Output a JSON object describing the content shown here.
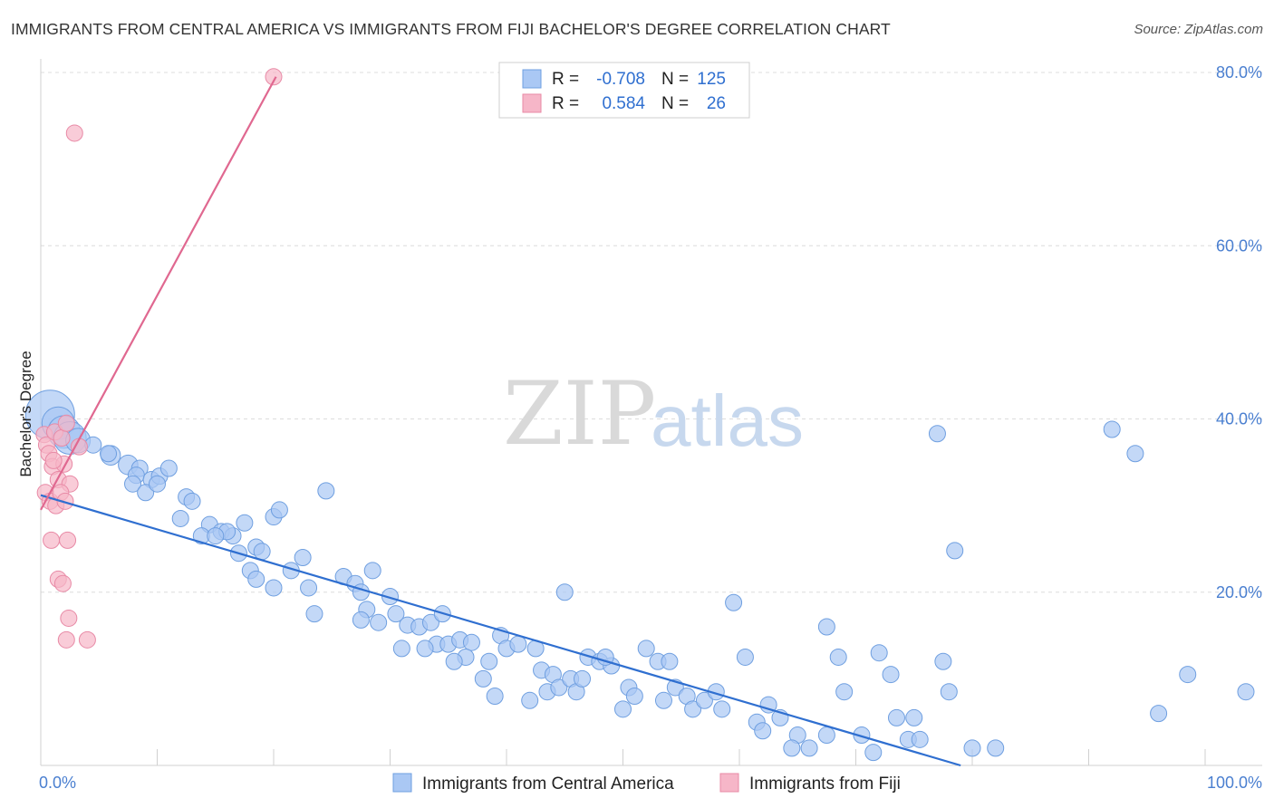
{
  "header": {
    "title": "IMMIGRANTS FROM CENTRAL AMERICA VS IMMIGRANTS FROM FIJI BACHELOR'S DEGREE CORRELATION CHART",
    "source": "Source: ZipAtlas.com"
  },
  "watermark": {
    "zip": "ZIP",
    "atlas": "atlas"
  },
  "legend": {
    "r_label": "R =",
    "n_label": "N =",
    "rows": [
      {
        "r": "-0.708",
        "n": "125",
        "color": "#aac8f4"
      },
      {
        "r": "0.584",
        "n": "26",
        "color": "#f6b6c8"
      }
    ]
  },
  "colors": {
    "blue_fill": "#aac8f4",
    "blue_stroke": "#6f9fe0",
    "blue_line": "#2f6fd0",
    "pink_fill": "#f6b6c8",
    "pink_stroke": "#e88aa6",
    "pink_line": "#e06890"
  },
  "chart_data": {
    "type": "scatter",
    "ylabel": "Bachelor's Degree",
    "xlim": [
      0,
      100
    ],
    "ylim": [
      0,
      80
    ],
    "x_tick_labels": [
      "0.0%",
      "100.0%"
    ],
    "y_tick_labels": [
      "20.0%",
      "40.0%",
      "60.0%",
      "80.0%"
    ],
    "y_ticks": [
      20,
      40,
      60,
      80
    ],
    "grid": true,
    "legend_position": "top-center",
    "series": [
      {
        "name": "Immigrants from Central America",
        "trend": [
          [
            0,
            31.2
          ],
          [
            79,
            0
          ]
        ],
        "points": [
          [
            0.8,
            40.5,
            3
          ],
          [
            1.5,
            39.5,
            2
          ],
          [
            2.0,
            38.5,
            2
          ],
          [
            2.5,
            37.8,
            2
          ],
          [
            3.2,
            37.5,
            1.5
          ],
          [
            4.5,
            37.0,
            1
          ],
          [
            6.0,
            35.8,
            1.2
          ],
          [
            5.8,
            36.0,
            1
          ],
          [
            7.5,
            34.7,
            1.2
          ],
          [
            8.5,
            34.3,
            1
          ],
          [
            8.2,
            33.5,
            1
          ],
          [
            7.9,
            32.5,
            1
          ],
          [
            9.5,
            33.0,
            1
          ],
          [
            10.2,
            33.4,
            1
          ],
          [
            11.0,
            34.3,
            1
          ],
          [
            9.0,
            31.5,
            1
          ],
          [
            10.0,
            32.5,
            1
          ],
          [
            12.5,
            31.0,
            1
          ],
          [
            13.0,
            30.5,
            1
          ],
          [
            14.5,
            27.8,
            1
          ],
          [
            15.5,
            27.0,
            1
          ],
          [
            16.5,
            26.5,
            1
          ],
          [
            12.0,
            28.5,
            1
          ],
          [
            13.8,
            26.5,
            1
          ],
          [
            16.0,
            27.0,
            1
          ],
          [
            17.5,
            28.0,
            1
          ],
          [
            20.0,
            28.7,
            1
          ],
          [
            20.5,
            29.5,
            1
          ],
          [
            17.0,
            24.5,
            1
          ],
          [
            18.5,
            25.2,
            1
          ],
          [
            19.0,
            24.7,
            1
          ],
          [
            18.0,
            22.5,
            1
          ],
          [
            18.5,
            21.5,
            1
          ],
          [
            20.0,
            20.5,
            1
          ],
          [
            21.5,
            22.5,
            1
          ],
          [
            22.5,
            24.0,
            1
          ],
          [
            23.0,
            20.5,
            1
          ],
          [
            24.5,
            31.7,
            1
          ],
          [
            23.5,
            17.5,
            1
          ],
          [
            26.0,
            21.8,
            1
          ],
          [
            27.0,
            21.0,
            1
          ],
          [
            27.5,
            20.0,
            1
          ],
          [
            28.5,
            22.5,
            1
          ],
          [
            28.0,
            18.0,
            1
          ],
          [
            29.0,
            16.5,
            1
          ],
          [
            30.0,
            19.5,
            1
          ],
          [
            30.5,
            17.5,
            1
          ],
          [
            31.5,
            16.2,
            1
          ],
          [
            32.5,
            16.0,
            1
          ],
          [
            33.5,
            16.5,
            1
          ],
          [
            34.5,
            17.5,
            1
          ],
          [
            31.0,
            13.5,
            1
          ],
          [
            34.0,
            14.0,
            1
          ],
          [
            35.0,
            14.0,
            1
          ],
          [
            36.0,
            14.5,
            1
          ],
          [
            37.0,
            14.2,
            1
          ],
          [
            36.5,
            12.5,
            1
          ],
          [
            38.5,
            12.0,
            1
          ],
          [
            38.0,
            10.0,
            1
          ],
          [
            39.0,
            8.0,
            1
          ],
          [
            39.5,
            15.0,
            1
          ],
          [
            40.0,
            13.5,
            1
          ],
          [
            41.0,
            14.0,
            1
          ],
          [
            42.5,
            13.5,
            1
          ],
          [
            43.0,
            11.0,
            1
          ],
          [
            44.0,
            10.5,
            1
          ],
          [
            43.5,
            8.5,
            1
          ],
          [
            44.5,
            9.0,
            1
          ],
          [
            45.5,
            10.0,
            1
          ],
          [
            46.0,
            8.5,
            1
          ],
          [
            46.5,
            10.0,
            1
          ],
          [
            47.0,
            12.5,
            1
          ],
          [
            48.0,
            12.0,
            1
          ],
          [
            49.0,
            11.5,
            1
          ],
          [
            48.5,
            12.5,
            1
          ],
          [
            50.5,
            9.0,
            1
          ],
          [
            50.0,
            6.5,
            1
          ],
          [
            51.0,
            8.0,
            1
          ],
          [
            52.0,
            13.5,
            1
          ],
          [
            53.0,
            12.0,
            1
          ],
          [
            54.0,
            12.0,
            1
          ],
          [
            54.5,
            9.0,
            1
          ],
          [
            55.5,
            8.0,
            1
          ],
          [
            56.0,
            6.5,
            1
          ],
          [
            57.0,
            7.5,
            1
          ],
          [
            58.5,
            6.5,
            1
          ],
          [
            58.0,
            8.5,
            1
          ],
          [
            59.5,
            18.8,
            1
          ],
          [
            60.5,
            12.5,
            1
          ],
          [
            62.5,
            7.0,
            1
          ],
          [
            61.5,
            5.0,
            1
          ],
          [
            63.5,
            5.5,
            1
          ],
          [
            65.0,
            3.5,
            1
          ],
          [
            64.5,
            2.0,
            1
          ],
          [
            66.0,
            2.0,
            1
          ],
          [
            67.5,
            3.5,
            1
          ],
          [
            67.5,
            16.0,
            1
          ],
          [
            68.5,
            12.5,
            1
          ],
          [
            69.0,
            8.5,
            1
          ],
          [
            70.5,
            3.5,
            1
          ],
          [
            71.5,
            1.5,
            1
          ],
          [
            72.0,
            13.0,
            1
          ],
          [
            73.0,
            10.5,
            1
          ],
          [
            73.5,
            5.5,
            1
          ],
          [
            74.5,
            3.0,
            1
          ],
          [
            75.0,
            5.5,
            1
          ],
          [
            75.5,
            3.0,
            1
          ],
          [
            77.0,
            38.3,
            1
          ],
          [
            77.5,
            12.0,
            1
          ],
          [
            78.0,
            8.5,
            1
          ],
          [
            80.0,
            2.0,
            1
          ],
          [
            82.0,
            2.0,
            1
          ],
          [
            78.5,
            24.8,
            1
          ],
          [
            92.0,
            38.8,
            1
          ],
          [
            94.0,
            36.0,
            1
          ],
          [
            96.0,
            6.0,
            1
          ],
          [
            98.5,
            10.5,
            1
          ],
          [
            103.5,
            8.5,
            1
          ],
          [
            45.0,
            20.0,
            1
          ],
          [
            15.0,
            26.5,
            1
          ],
          [
            27.5,
            16.8,
            1
          ],
          [
            33.0,
            13.5,
            1
          ],
          [
            35.5,
            12.0,
            1
          ],
          [
            42.0,
            7.5,
            1
          ],
          [
            53.5,
            7.5,
            1
          ],
          [
            62.0,
            4.0,
            1
          ]
        ]
      },
      {
        "name": "Immigrants from Fiji",
        "trend": [
          [
            0,
            29.5
          ],
          [
            20.2,
            79.5
          ]
        ],
        "points": [
          [
            0.3,
            38.2,
            1
          ],
          [
            0.5,
            37.0,
            1
          ],
          [
            1.2,
            38.5,
            1
          ],
          [
            1.8,
            37.8,
            1
          ],
          [
            2.2,
            39.5,
            1
          ],
          [
            0.7,
            36.0,
            1
          ],
          [
            1.0,
            34.5,
            1
          ],
          [
            1.5,
            33.0,
            1
          ],
          [
            2.0,
            34.8,
            1
          ],
          [
            2.5,
            32.5,
            1
          ],
          [
            0.4,
            31.5,
            1
          ],
          [
            0.8,
            30.5,
            1
          ],
          [
            1.3,
            30.0,
            1
          ],
          [
            1.7,
            31.5,
            1
          ],
          [
            2.1,
            30.5,
            1
          ],
          [
            0.9,
            26.0,
            1
          ],
          [
            2.3,
            26.0,
            1
          ],
          [
            1.5,
            21.5,
            1
          ],
          [
            1.9,
            21.0,
            1
          ],
          [
            2.4,
            17.0,
            1
          ],
          [
            2.2,
            14.5,
            1
          ],
          [
            4.0,
            14.5,
            1
          ],
          [
            2.9,
            73.0,
            1
          ],
          [
            20.0,
            79.5,
            1
          ],
          [
            3.3,
            36.8,
            1
          ],
          [
            1.1,
            35.2,
            1
          ]
        ]
      }
    ]
  },
  "bottom_legend": {
    "items": [
      {
        "label": "Immigrants from Central America",
        "color": "#aac8f4"
      },
      {
        "label": "Immigrants from Fiji",
        "color": "#f6b6c8"
      }
    ]
  }
}
